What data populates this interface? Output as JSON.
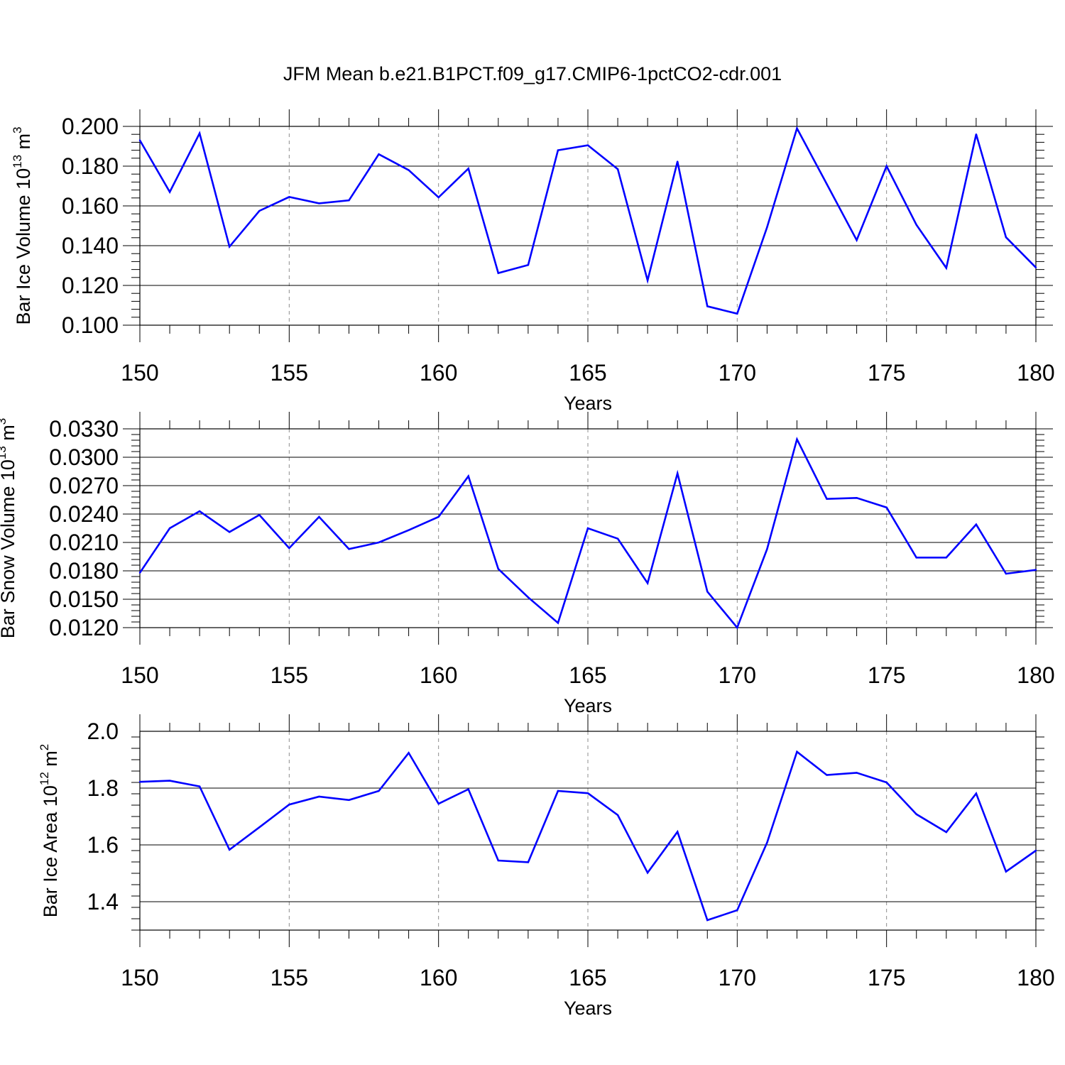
{
  "title": "JFM Mean b.e21.B1PCT.f09_g17.CMIP6-1pctCO2-cdr.001",
  "colors": {
    "series": "#0000ff",
    "axis": "#000000",
    "grid": "#8c8c8c"
  },
  "chart_data": [
    {
      "type": "line",
      "xlabel": "Years",
      "ylabel": {
        "text": "Bar Ice Volume 10",
        "sup1": "13",
        "mid": " m",
        "sup2": "3"
      },
      "xlim": [
        150,
        180
      ],
      "ylim": [
        0.1,
        0.2
      ],
      "xticks": [
        "150",
        "155",
        "160",
        "165",
        "170",
        "175",
        "180"
      ],
      "yticks": [
        "0.100",
        "0.120",
        "0.140",
        "0.160",
        "0.180",
        "0.200"
      ],
      "x": [
        150,
        151,
        152,
        153,
        154,
        155,
        156,
        157,
        158,
        159,
        160,
        161,
        162,
        163,
        164,
        165,
        166,
        167,
        168,
        169,
        170,
        171,
        172,
        173,
        174,
        175,
        176,
        177,
        178,
        179,
        180
      ],
      "values": [
        0.193,
        0.167,
        0.1965,
        0.1395,
        0.1575,
        0.1645,
        0.1613,
        0.1628,
        0.186,
        0.178,
        0.1643,
        0.1788,
        0.1262,
        0.1303,
        0.188,
        0.1905,
        0.1785,
        0.1225,
        0.1823,
        0.1095,
        0.1058,
        0.1493,
        0.199,
        0.171,
        0.1428,
        0.18,
        0.1505,
        0.1288,
        0.196,
        0.1442,
        0.129
      ],
      "grid": "dashed vertical"
    },
    {
      "type": "line",
      "xlabel": "Years",
      "ylabel": {
        "text": "Bar Snow Volume 10",
        "sup1": "13",
        "mid": " m",
        "sup2": "3"
      },
      "xlim": [
        150,
        180
      ],
      "ylim": [
        0.012,
        0.033
      ],
      "xticks": [
        "150",
        "155",
        "160",
        "165",
        "170",
        "175",
        "180"
      ],
      "yticks": [
        "0.0120",
        "0.0150",
        "0.0180",
        "0.0210",
        "0.0240",
        "0.0270",
        "0.0300",
        "0.0330"
      ],
      "x": [
        150,
        151,
        152,
        153,
        154,
        155,
        156,
        157,
        158,
        159,
        160,
        161,
        162,
        163,
        164,
        165,
        166,
        167,
        168,
        169,
        170,
        171,
        172,
        173,
        174,
        175,
        176,
        177,
        178,
        179,
        180
      ],
      "values": [
        0.0178,
        0.0225,
        0.0243,
        0.0221,
        0.0239,
        0.0204,
        0.0237,
        0.0203,
        0.021,
        0.0223,
        0.0237,
        0.028,
        0.0182,
        0.0152,
        0.0125,
        0.0225,
        0.0214,
        0.0167,
        0.0283,
        0.0158,
        0.012,
        0.0203,
        0.0319,
        0.0256,
        0.0257,
        0.0247,
        0.0194,
        0.0194,
        0.0229,
        0.0177,
        0.0181
      ],
      "grid": "dashed vertical"
    },
    {
      "type": "line",
      "xlabel": "Years",
      "ylabel": {
        "text": "Bar Ice Area 10",
        "sup1": "12",
        "mid": " m",
        "sup2": "2"
      },
      "xlim": [
        150,
        180
      ],
      "ylim": [
        1.3,
        2.0
      ],
      "xticks": [
        "150",
        "155",
        "160",
        "165",
        "170",
        "175",
        "180"
      ],
      "yticks": [
        "1.4",
        "1.6",
        "1.8",
        "2.0"
      ],
      "x": [
        150,
        151,
        152,
        153,
        154,
        155,
        156,
        157,
        158,
        159,
        160,
        161,
        162,
        163,
        164,
        165,
        166,
        167,
        168,
        169,
        170,
        171,
        172,
        173,
        174,
        175,
        176,
        177,
        178,
        179,
        180
      ],
      "values": [
        1.822,
        1.826,
        1.806,
        1.583,
        1.662,
        1.742,
        1.77,
        1.758,
        1.79,
        1.924,
        1.745,
        1.796,
        1.545,
        1.539,
        1.79,
        1.782,
        1.705,
        1.502,
        1.646,
        1.335,
        1.37,
        1.608,
        1.928,
        1.846,
        1.854,
        1.82,
        1.708,
        1.645,
        1.781,
        1.506,
        1.58
      ],
      "grid": "dashed vertical"
    }
  ]
}
